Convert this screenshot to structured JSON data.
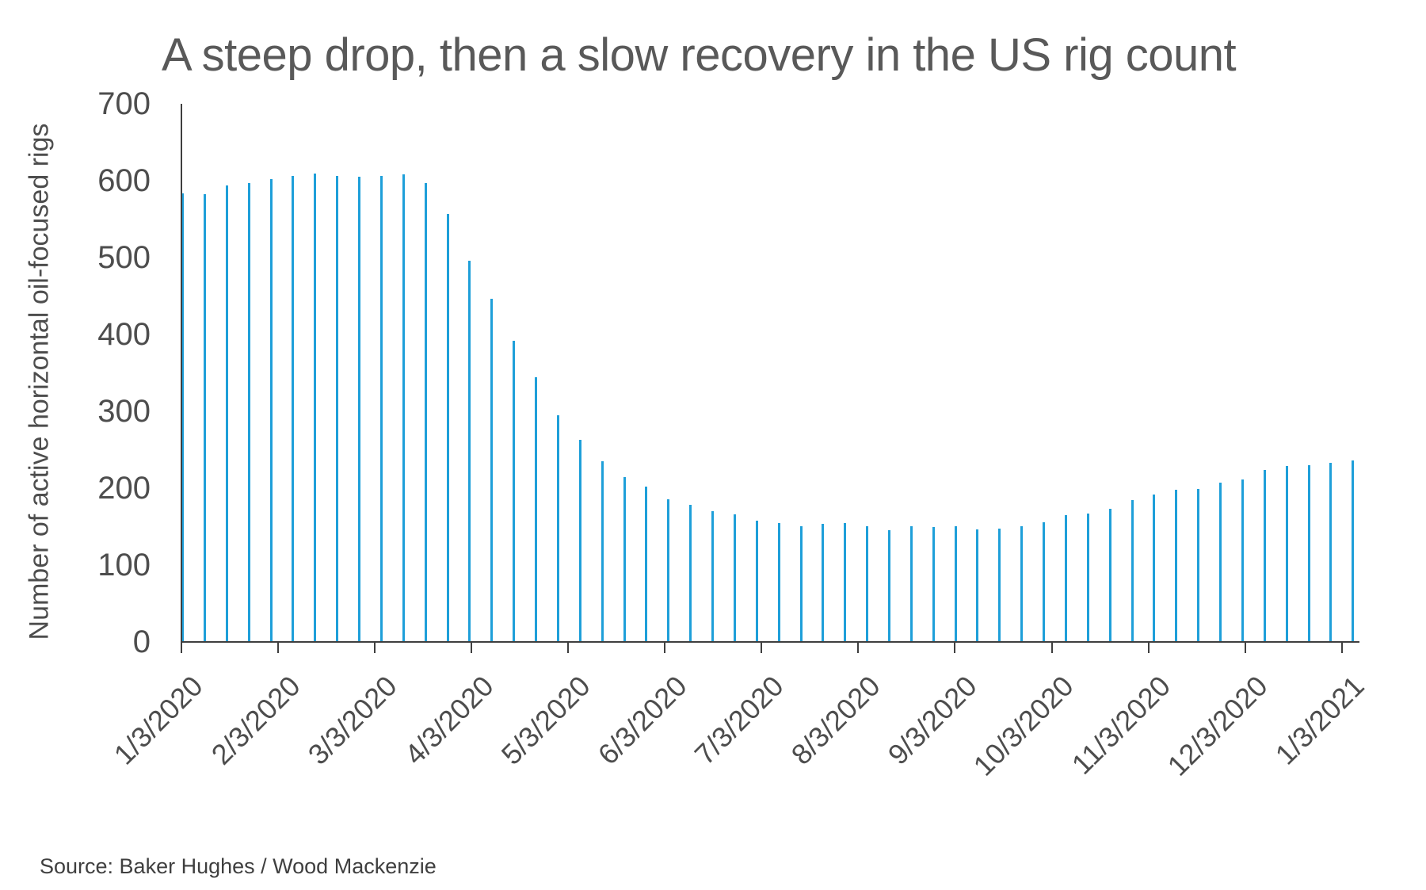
{
  "title": "A steep drop, then a slow recovery in the US rig count",
  "y_axis": {
    "label": "Number of active horizontal oil-focused rigs",
    "tick_labels": [
      "700",
      "600",
      "500",
      "400",
      "300",
      "200",
      "100",
      "0"
    ]
  },
  "x_axis": {
    "tick_labels": [
      "1/3/2020",
      "2/3/2020",
      "3/3/2020",
      "4/3/2020",
      "5/3/2020",
      "6/3/2020",
      "7/3/2020",
      "8/3/2020",
      "9/3/2020",
      "10/3/2020",
      "11/3/2020",
      "12/3/2020",
      "1/3/2021"
    ]
  },
  "source": "Source: Baker Hughes / Wood Mackenzie",
  "colors": {
    "bar": "#1e9fd9",
    "axis": "#3f3f3f",
    "title_text": "#595959",
    "tick_text": "#4d4d4d"
  },
  "chart_data": {
    "type": "bar",
    "title": "A steep drop, then a slow recovery in the US rig count",
    "xlabel": "",
    "ylabel": "Number of active horizontal oil-focused rigs",
    "ylim": [
      0,
      700
    ],
    "y_ticks": [
      0,
      100,
      200,
      300,
      400,
      500,
      600,
      700
    ],
    "grid": false,
    "legend": false,
    "series_name": "Active horizontal oil-focused rigs",
    "cadence": "weekly bars, monthly x tick labels",
    "x_tick_labels": [
      "1/3/2020",
      "2/3/2020",
      "3/3/2020",
      "4/3/2020",
      "5/3/2020",
      "6/3/2020",
      "7/3/2020",
      "8/3/2020",
      "9/3/2020",
      "10/3/2020",
      "11/3/2020",
      "12/3/2020",
      "1/3/2021"
    ],
    "values": [
      584,
      583,
      594,
      597,
      603,
      607,
      610,
      607,
      606,
      607,
      609,
      597,
      557,
      496,
      447,
      392,
      345,
      295,
      263,
      235,
      215,
      202,
      186,
      178,
      170,
      166,
      158,
      155,
      151,
      154,
      155,
      151,
      145,
      151,
      150,
      151,
      147,
      148,
      151,
      156,
      165,
      167,
      173,
      185,
      192,
      198,
      199,
      207,
      212,
      224,
      229,
      230,
      233,
      236
    ]
  }
}
